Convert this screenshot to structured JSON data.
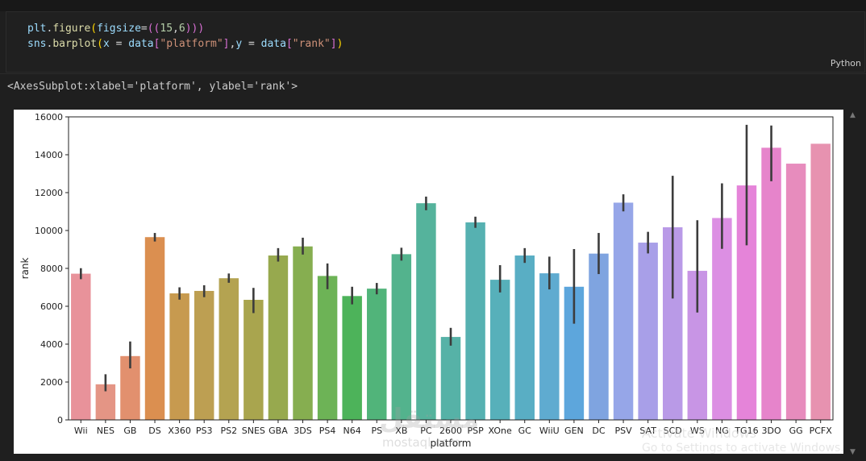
{
  "code_cell": {
    "language": "Python",
    "lines": [
      [
        {
          "t": "plt",
          "c": "#9cdcfe"
        },
        {
          "t": ".",
          "c": "#d4d4d4"
        },
        {
          "t": "figure",
          "c": "#dcdcaa"
        },
        {
          "t": "(",
          "c": "#ffd700"
        },
        {
          "t": "figsize",
          "c": "#9cdcfe"
        },
        {
          "t": "=",
          "c": "#d4d4d4"
        },
        {
          "t": "((",
          "c": "#da70d6"
        },
        {
          "t": "15",
          "c": "#b5cea8"
        },
        {
          "t": ",",
          "c": "#d4d4d4"
        },
        {
          "t": "6",
          "c": "#b5cea8"
        },
        {
          "t": ")))",
          "c": "#da70d6"
        }
      ],
      [
        {
          "t": "sns",
          "c": "#9cdcfe"
        },
        {
          "t": ".",
          "c": "#d4d4d4"
        },
        {
          "t": "barplot",
          "c": "#dcdcaa"
        },
        {
          "t": "(",
          "c": "#ffd700"
        },
        {
          "t": "x",
          "c": "#9cdcfe"
        },
        {
          "t": " = ",
          "c": "#d4d4d4"
        },
        {
          "t": "data",
          "c": "#9cdcfe"
        },
        {
          "t": "[",
          "c": "#da70d6"
        },
        {
          "t": "\"platform\"",
          "c": "#ce9178"
        },
        {
          "t": "]",
          "c": "#da70d6"
        },
        {
          "t": ",",
          "c": "#d4d4d4"
        },
        {
          "t": "y",
          "c": "#9cdcfe"
        },
        {
          "t": " = ",
          "c": "#d4d4d4"
        },
        {
          "t": "data",
          "c": "#9cdcfe"
        },
        {
          "t": "[",
          "c": "#da70d6"
        },
        {
          "t": "\"rank\"",
          "c": "#ce9178"
        },
        {
          "t": "]",
          "c": "#da70d6"
        },
        {
          "t": ")",
          "c": "#ffd700"
        }
      ]
    ]
  },
  "output": {
    "text": "<AxesSubplot:xlabel='platform', ylabel='rank'>"
  },
  "chart_data": {
    "type": "bar",
    "xlabel": "platform",
    "ylabel": "rank",
    "ylim": [
      0,
      16000
    ],
    "yticks": [
      0,
      2000,
      4000,
      6000,
      8000,
      10000,
      12000,
      14000,
      16000
    ],
    "grid": false,
    "categories": [
      "Wii",
      "NES",
      "GB",
      "DS",
      "X360",
      "PS3",
      "PS2",
      "SNES",
      "GBA",
      "3DS",
      "PS4",
      "N64",
      "PS",
      "XB",
      "PC",
      "2600",
      "PSP",
      "XOne",
      "GC",
      "WiiU",
      "GEN",
      "DC",
      "PSV",
      "SAT",
      "SCD",
      "WS",
      "NG",
      "TG16",
      "3DO",
      "GG",
      "PCFX"
    ],
    "values": [
      7720,
      1880,
      3370,
      9650,
      6680,
      6810,
      7480,
      6340,
      8680,
      9160,
      7600,
      6540,
      6930,
      8750,
      11440,
      4380,
      10430,
      7400,
      8680,
      7740,
      7030,
      8780,
      11470,
      9360,
      10170,
      7870,
      10660,
      12380,
      14370,
      13530,
      14580
    ],
    "ci_low": [
      7430,
      1510,
      2720,
      9420,
      6350,
      6480,
      7240,
      5640,
      8360,
      8730,
      6900,
      6100,
      6630,
      8410,
      11070,
      3920,
      10140,
      6730,
      8290,
      6890,
      5080,
      7700,
      11010,
      8790,
      6410,
      5670,
      9030,
      9220,
      12600,
      13530,
      14580
    ],
    "ci_high": [
      8010,
      2410,
      4140,
      9870,
      7000,
      7110,
      7730,
      6970,
      9070,
      9620,
      8260,
      7030,
      7230,
      9090,
      11790,
      4860,
      10730,
      8170,
      9070,
      8620,
      9020,
      9870,
      11910,
      9930,
      12890,
      10540,
      12490,
      15580,
      15540,
      13530,
      14580
    ],
    "colors": [
      "#e8929a",
      "#e49585",
      "#e2906e",
      "#db8f50",
      "#c79a4f",
      "#bd9f52",
      "#b4a351",
      "#a9a54e",
      "#97a94e",
      "#86ae50",
      "#6db356",
      "#4db35a",
      "#51b47a",
      "#53b38d",
      "#55b39c",
      "#56b2a7",
      "#56b1b1",
      "#57b0ba",
      "#59aec4",
      "#5fabd0",
      "#5da6dc",
      "#7fa4e0",
      "#96a6e8",
      "#a89fe8",
      "#b99ae7",
      "#c895e5",
      "#dc8fe3",
      "#e584d9",
      "#e684cb",
      "#e78cbd",
      "#e792b0"
    ]
  },
  "watermarks": {
    "line1": "Activate Windows",
    "line2": "Go to Settings to activate Windows.",
    "brand": "مستقل",
    "brand_sub": "mostaql.com"
  }
}
